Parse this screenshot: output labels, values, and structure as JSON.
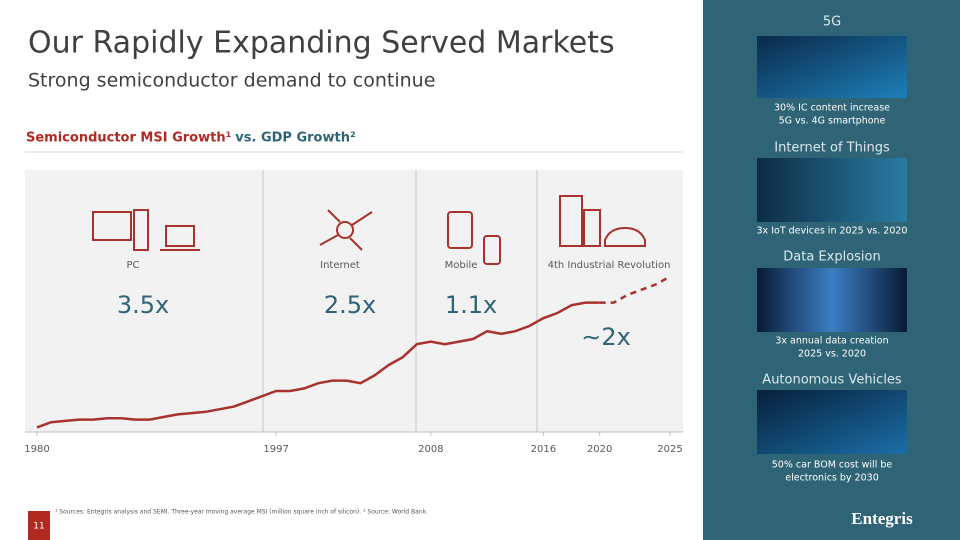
{
  "header": {
    "title": "Our Rapidly Expanding Served Markets",
    "subtitle": "Strong semiconductor demand to continue"
  },
  "chart_data": {
    "type": "line",
    "title_parts": [
      "Semiconductor MSI Growth¹",
      "vs. GDP Growth²"
    ],
    "x": [
      1980,
      1981,
      1982,
      1983,
      1984,
      1985,
      1986,
      1987,
      1988,
      1989,
      1990,
      1991,
      1992,
      1993,
      1994,
      1995,
      1996,
      1997,
      1998,
      1999,
      2000,
      2001,
      2002,
      2003,
      2004,
      2005,
      2006,
      2007,
      2008,
      2009,
      2010,
      2011,
      2012,
      2013,
      2014,
      2015,
      2016,
      2017,
      2018,
      2019,
      2020,
      2021,
      2022,
      2023,
      2024,
      2025
    ],
    "series": [
      {
        "color": "#a8322d",
        "dashed": false,
        "values": [
          1,
          3,
          3.5,
          4,
          4,
          4.5,
          4.5,
          4,
          4,
          5,
          6,
          6.5,
          7,
          8,
          9,
          11,
          13,
          15,
          15,
          16,
          18,
          19,
          19,
          18,
          21,
          25,
          28,
          33,
          34,
          33,
          34,
          35,
          38,
          37,
          38,
          40,
          43,
          45,
          48,
          49,
          49,
          null,
          null,
          null,
          null,
          null
        ]
      },
      {
        "color": "#a8322d",
        "dashed": true,
        "values": [
          null,
          null,
          null,
          null,
          null,
          null,
          null,
          null,
          null,
          null,
          null,
          null,
          null,
          null,
          null,
          null,
          null,
          null,
          null,
          null,
          null,
          null,
          null,
          null,
          null,
          null,
          null,
          null,
          null,
          null,
          null,
          null,
          null,
          null,
          null,
          null,
          null,
          null,
          null,
          null,
          49,
          49,
          52,
          54,
          56,
          59
        ]
      }
    ],
    "xlim": [
      1980,
      2025
    ],
    "xticks": [
      1980,
      1997,
      2008,
      2016,
      2020,
      2025
    ],
    "ylim": [
      0,
      100
    ],
    "eras": [
      {
        "label": "PC",
        "multiplier": "3.5x"
      },
      {
        "label": "Internet",
        "multiplier": "2.5x"
      },
      {
        "label": "Mobile",
        "multiplier": "1.1x"
      },
      {
        "label": "4th Industrial Revolution",
        "multiplier": "∼2x"
      }
    ]
  },
  "footnote": "¹ Sources: Entegris analysis and SEMI. Three-year moving average MSI (million square inch of silicon). ² Source: World Bank.",
  "page_number": "11",
  "panel": [
    {
      "heading": "5G",
      "lines": [
        "30% IC content increase",
        "5G vs. 4G smartphone"
      ]
    },
    {
      "heading": "Internet of Things",
      "lines": [
        "3x IoT devices in 2025 vs. 2020"
      ]
    },
    {
      "heading": "Data Explosion",
      "lines": [
        "3x annual data creation",
        "2025 vs. 2020"
      ]
    },
    {
      "heading": "Autonomous Vehicles",
      "lines": [
        "50% car BOM cost will be",
        "electronics by 2030"
      ]
    }
  ],
  "logo": "Entegris"
}
